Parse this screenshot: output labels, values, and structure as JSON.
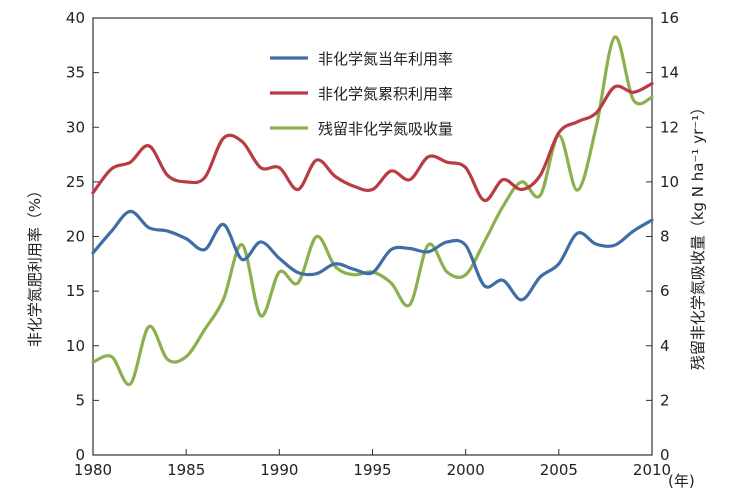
{
  "chart_data": {
    "type": "line",
    "title": "",
    "xlabel": "(年)",
    "ylabel": "非化学氮肥利用率（%）",
    "y2label": "残留非化学氮吸收量（kg N ha⁻¹ yr⁻¹）",
    "xlim": [
      1980,
      2010
    ],
    "ylim": [
      0,
      40
    ],
    "y2lim": [
      0,
      16
    ],
    "xticks": [
      "1980",
      "1985",
      "1990",
      "1995",
      "2000",
      "2005",
      "2010"
    ],
    "yticks": [
      "0",
      "5",
      "10",
      "15",
      "20",
      "25",
      "30",
      "35",
      "40"
    ],
    "y2ticks": [
      "0",
      "2",
      "4",
      "6",
      "8",
      "10",
      "12",
      "14",
      "16"
    ],
    "legend_position": "top-center",
    "series": [
      {
        "name": "非化学氮当年利用率",
        "axis": "left",
        "color": "#3f6ea6",
        "x": [
          1980,
          1981,
          1982,
          1983,
          1984,
          1985,
          1986,
          1987,
          1988,
          1989,
          1990,
          1991,
          1992,
          1993,
          1994,
          1995,
          1996,
          1997,
          1998,
          1999,
          2000,
          2001,
          2002,
          2003,
          2004,
          2005,
          2006,
          2007,
          2008,
          2009,
          2010
        ],
        "values": [
          18.5,
          20.5,
          22.3,
          20.8,
          20.5,
          19.8,
          18.8,
          21.1,
          17.9,
          19.5,
          18.0,
          16.7,
          16.6,
          17.5,
          17.0,
          16.7,
          18.8,
          18.9,
          18.6,
          19.5,
          19.2,
          15.5,
          16.0,
          14.2,
          16.3,
          17.5,
          20.3,
          19.3,
          19.2,
          20.5,
          21.5
        ]
      },
      {
        "name": "非化学氮累积利用率",
        "axis": "left",
        "color": "#b83c44",
        "x": [
          1980,
          1981,
          1982,
          1983,
          1984,
          1985,
          1986,
          1987,
          1988,
          1989,
          1990,
          1991,
          1992,
          1993,
          1994,
          1995,
          1996,
          1997,
          1998,
          1999,
          2000,
          2001,
          2002,
          2003,
          2004,
          2005,
          2006,
          2007,
          2008,
          2009,
          2010
        ],
        "values": [
          24.0,
          26.2,
          26.8,
          28.3,
          25.6,
          25.0,
          25.4,
          29.0,
          28.7,
          26.3,
          26.3,
          24.3,
          27.0,
          25.5,
          24.6,
          24.3,
          26.0,
          25.2,
          27.3,
          26.8,
          26.3,
          23.3,
          25.2,
          24.3,
          25.6,
          29.5,
          30.5,
          31.3,
          33.7,
          33.2,
          34.0
        ]
      },
      {
        "name": "残留非化学氮吸收量",
        "axis": "right",
        "color": "#8bb04e",
        "x": [
          1980,
          1981,
          1982,
          1983,
          1984,
          1985,
          1986,
          1987,
          1988,
          1989,
          1990,
          1991,
          1992,
          1993,
          1994,
          1995,
          1996,
          1997,
          1998,
          1999,
          2000,
          2001,
          2002,
          2003,
          2004,
          2005,
          2006,
          2007,
          2008,
          2009,
          2010
        ],
        "values": [
          3.4,
          3.6,
          2.6,
          4.7,
          3.5,
          3.6,
          4.6,
          5.7,
          7.7,
          5.1,
          6.7,
          6.3,
          8.0,
          6.9,
          6.6,
          6.7,
          6.3,
          5.5,
          7.7,
          6.7,
          6.6,
          7.8,
          9.1,
          10.0,
          9.5,
          11.7,
          9.7,
          12.0,
          15.3,
          13.0,
          13.1
        ]
      }
    ]
  }
}
